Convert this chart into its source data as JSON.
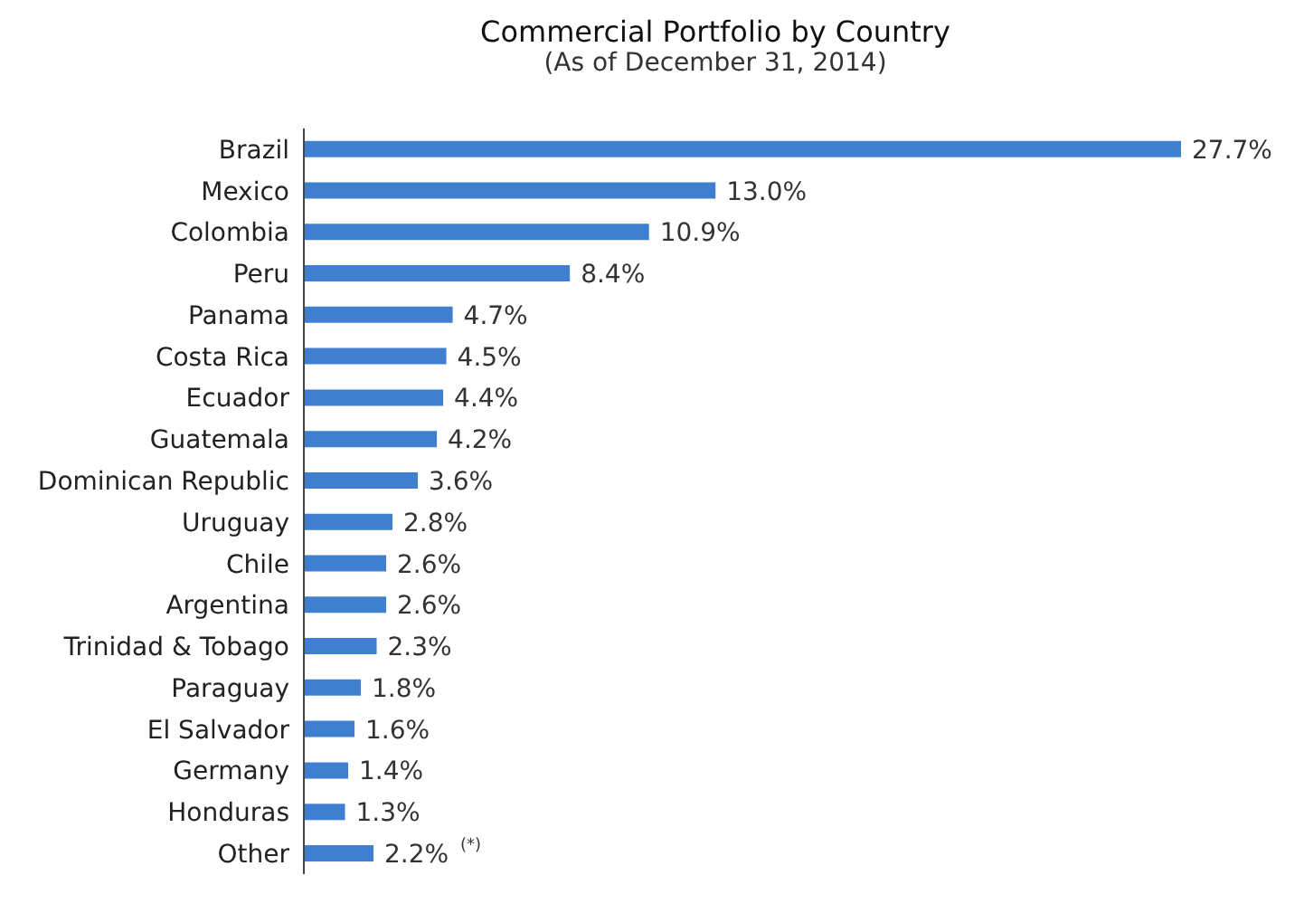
{
  "chart_data": {
    "type": "bar",
    "orientation": "horizontal",
    "title": "Commercial Portfolio by Country",
    "subtitle": "(As of December 31, 2014)",
    "categories": [
      "Brazil",
      "Mexico",
      "Colombia",
      "Peru",
      "Panama",
      "Costa Rica",
      "Ecuador",
      "Guatemala",
      "Dominican Republic",
      "Uruguay",
      "Chile",
      "Argentina",
      "Trinidad & Tobago",
      "Paraguay",
      "El Salvador",
      "Germany",
      "Honduras",
      "Other"
    ],
    "values": [
      27.7,
      13.0,
      10.9,
      8.4,
      4.7,
      4.5,
      4.4,
      4.2,
      3.6,
      2.8,
      2.6,
      2.6,
      2.3,
      1.8,
      1.6,
      1.4,
      1.3,
      2.2
    ],
    "value_labels": [
      "27.7%",
      "13.0%",
      "10.9%",
      "8.4%",
      "4.7%",
      "4.5%",
      "4.4%",
      "4.2%",
      "3.6%",
      "2.8%",
      "2.6%",
      "2.6%",
      "2.3%",
      "1.8%",
      "1.6%",
      "1.4%",
      "1.3%",
      "2.2%"
    ],
    "color": "#3f7fd0",
    "tick_labels": "y",
    "annotations": [
      "(*)"
    ]
  }
}
